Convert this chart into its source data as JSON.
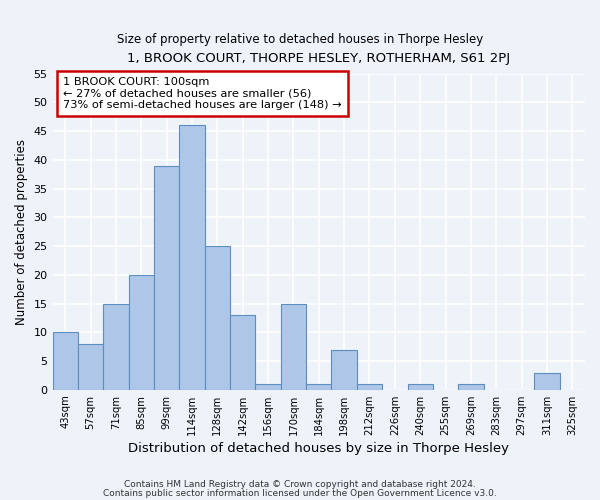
{
  "title": "1, BROOK COURT, THORPE HESLEY, ROTHERHAM, S61 2PJ",
  "subtitle": "Size of property relative to detached houses in Thorpe Hesley",
  "xlabel": "Distribution of detached houses by size in Thorpe Hesley",
  "ylabel": "Number of detached properties",
  "bar_labels": [
    "43sqm",
    "57sqm",
    "71sqm",
    "85sqm",
    "99sqm",
    "114sqm",
    "128sqm",
    "142sqm",
    "156sqm",
    "170sqm",
    "184sqm",
    "198sqm",
    "212sqm",
    "226sqm",
    "240sqm",
    "255sqm",
    "269sqm",
    "283sqm",
    "297sqm",
    "311sqm",
    "325sqm"
  ],
  "bar_values": [
    10,
    8,
    15,
    20,
    39,
    46,
    25,
    13,
    1,
    15,
    1,
    7,
    1,
    0,
    1,
    0,
    1,
    0,
    0,
    3,
    0
  ],
  "bar_color": "#aec6e8",
  "bar_edge_color": "#5a8fc0",
  "annotation_title": "1 BROOK COURT: 100sqm",
  "annotation_line1": "← 27% of detached houses are smaller (56)",
  "annotation_line2": "73% of semi-detached houses are larger (148) →",
  "annotation_box_color": "#ffffff",
  "annotation_box_edge_color": "#cc0000",
  "ylim": [
    0,
    55
  ],
  "yticks": [
    0,
    5,
    10,
    15,
    20,
    25,
    30,
    35,
    40,
    45,
    50,
    55
  ],
  "footer1": "Contains HM Land Registry data © Crown copyright and database right 2024.",
  "footer2": "Contains public sector information licensed under the Open Government Licence v3.0.",
  "bg_color": "#eef2f9",
  "grid_color": "#ffffff"
}
